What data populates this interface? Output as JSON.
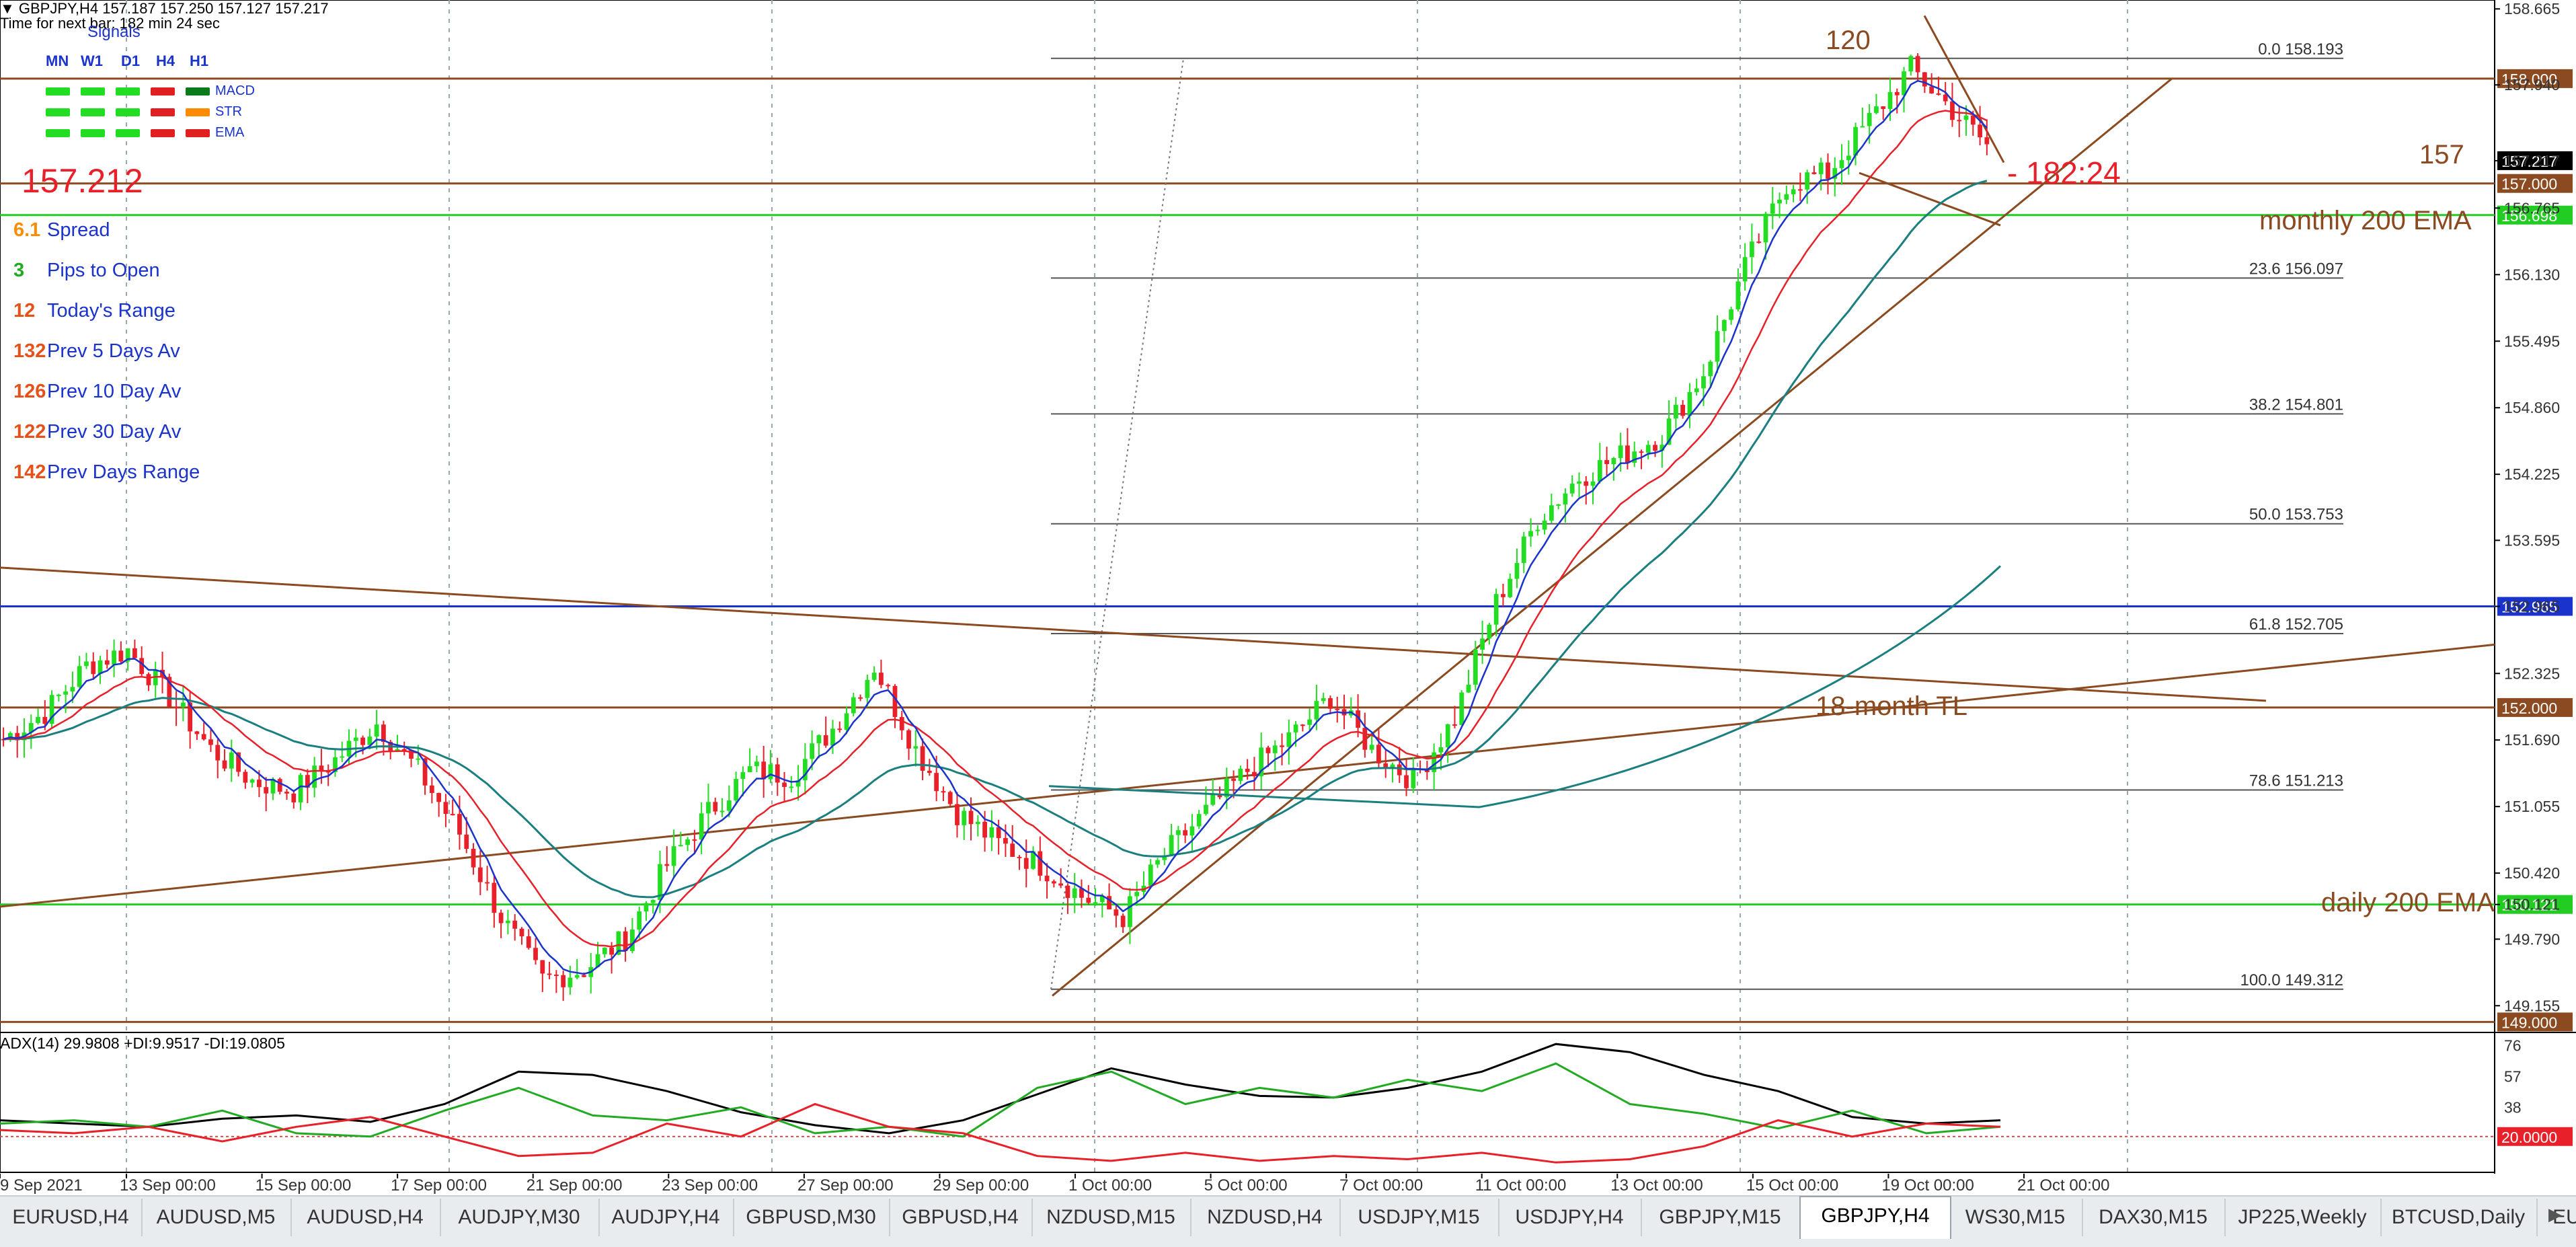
{
  "header": {
    "line1": "▼ GBPJPY,H4  157.187 157.250 157.127 157.217",
    "line2": "Time for next bar: 182 min 24 sec"
  },
  "signals": {
    "title": "Signals",
    "timeframes": [
      "MN",
      "W1",
      "D1",
      "H4",
      "H1"
    ],
    "rows": [
      {
        "label": "MACD",
        "colors": [
          "#22dd22",
          "#22dd22",
          "#22dd22",
          "#e02020",
          "#0a7a1a"
        ]
      },
      {
        "label": "STR",
        "colors": [
          "#22dd22",
          "#22dd22",
          "#22dd22",
          "#e02020",
          "#ff8c00"
        ]
      },
      {
        "label": "EMA",
        "colors": [
          "#22dd22",
          "#22dd22",
          "#22dd22",
          "#e02020",
          "#e02020"
        ]
      }
    ]
  },
  "big_price": "157.212",
  "stats": [
    {
      "value": "6.1",
      "label": "Spread",
      "color": "#ff8c00"
    },
    {
      "value": "3",
      "label": "Pips to Open",
      "color": "#22aa22"
    },
    {
      "value": "12",
      "label": "Today's Range",
      "color": "#e8501a"
    },
    {
      "value": "132",
      "label": "Prev 5 Days Av",
      "color": "#e8501a"
    },
    {
      "value": "126",
      "label": "Prev 10 Day Av",
      "color": "#e8501a"
    },
    {
      "value": "122",
      "label": "Prev 30 Day Av",
      "color": "#e8501a"
    },
    {
      "value": "142",
      "label": "Prev Days Range",
      "color": "#e8501a"
    }
  ],
  "annotations": {
    "label_120": "120",
    "label_157": "157",
    "countdown": "- 182:24",
    "monthly_ema": "monthly 200 EMA",
    "daily_ema": "daily 200 EMA",
    "tl_18month": "18-month TL"
  },
  "adx_label": "ADX(14) 29.9808 +DI:9.9517 -DI:19.0805",
  "chart_data": {
    "type": "candlestick",
    "symbol": "GBPJPY",
    "timeframe": "H4",
    "ylim": [
      148.9,
      158.75
    ],
    "price_ticks": [
      "158.665",
      "157.940",
      "157.217",
      "156.765",
      "156.130",
      "155.495",
      "154.860",
      "154.225",
      "153.595",
      "152.965",
      "152.325",
      "151.690",
      "151.055",
      "150.420",
      "150.121",
      "149.790",
      "149.155"
    ],
    "price_tick_values": [
      158.665,
      157.94,
      157.217,
      156.765,
      156.13,
      155.495,
      154.86,
      154.225,
      153.595,
      152.965,
      152.325,
      151.69,
      151.055,
      150.42,
      150.121,
      149.79,
      149.155
    ],
    "x_labels": [
      "9 Sep 2021",
      "13 Sep 00:00",
      "15 Sep 00:00",
      "17 Sep 00:00",
      "21 Sep 00:00",
      "23 Sep 00:00",
      "27 Sep 00:00",
      "29 Sep 00:00",
      "1 Oct 00:00",
      "5 Oct 00:00",
      "7 Oct 00:00",
      "11 Oct 00:00",
      "13 Oct 00:00",
      "15 Oct 00:00",
      "19 Oct 00:00",
      "21 Oct 00:00"
    ],
    "horizontal_levels": [
      {
        "price": 158.0,
        "label": "158.000",
        "color": "#8b4a1f"
      },
      {
        "price": 157.0,
        "label": "157.000",
        "color": "#8b4a1f"
      },
      {
        "price": 156.698,
        "label": "156.698",
        "color": "#22cc22"
      },
      {
        "price": 152.965,
        "label": "152.965",
        "color": "#1a33cc"
      },
      {
        "price": 152.0,
        "label": "152.000",
        "color": "#8b4a1f"
      },
      {
        "price": 150.121,
        "label": "150.121",
        "color": "#22cc22"
      },
      {
        "price": 149.0,
        "label": "149.000",
        "color": "#8b4a1f"
      }
    ],
    "current_price": {
      "price": 157.217,
      "label": "157.217"
    },
    "fibonacci": [
      {
        "level": "0.0",
        "price": "158.193"
      },
      {
        "level": "23.6",
        "price": "156.097"
      },
      {
        "level": "38.2",
        "price": "154.801"
      },
      {
        "level": "50.0",
        "price": "153.753"
      },
      {
        "level": "61.8",
        "price": "152.705"
      },
      {
        "level": "78.6",
        "price": "151.213"
      },
      {
        "level": "100.0",
        "price": "149.312"
      }
    ],
    "fib_values": [
      158.193,
      156.097,
      154.801,
      153.753,
      152.705,
      151.213,
      149.312
    ],
    "close_path": [
      151.7,
      151.95,
      152.4,
      152.55,
      152.1,
      151.6,
      151.3,
      151.2,
      151.5,
      151.85,
      151.4,
      150.8,
      150.0,
      149.4,
      149.5,
      149.8,
      150.5,
      151.0,
      151.4,
      151.35,
      151.8,
      152.4,
      151.6,
      151.0,
      150.7,
      150.5,
      150.2,
      150.0,
      150.6,
      151.0,
      151.4,
      151.7,
      152.1,
      151.6,
      151.3,
      151.9,
      153.0,
      153.8,
      154.2,
      154.4,
      154.6,
      155.2,
      156.2,
      157.0,
      157.1,
      157.6,
      158.1,
      157.7,
      157.3
    ],
    "adx": {
      "ylim": [
        0,
        80
      ],
      "ticks": [
        "76",
        "57",
        "38",
        "20"
      ],
      "tick_values": [
        76,
        57,
        38,
        20
      ],
      "level": {
        "value": 20,
        "label": "20.0000"
      },
      "adx_path": [
        30,
        28,
        26,
        31,
        33,
        29,
        40,
        60,
        58,
        48,
        35,
        27,
        22,
        30,
        46,
        62,
        52,
        45,
        44,
        50,
        60,
        77,
        72,
        58,
        48,
        32,
        28,
        30
      ],
      "plus_di_path": [
        28,
        30,
        26,
        36,
        22,
        20,
        36,
        50,
        33,
        30,
        38,
        22,
        26,
        20,
        50,
        60,
        40,
        50,
        44,
        55,
        48,
        65,
        40,
        34,
        25,
        36,
        22,
        26
      ],
      "minus_di_path": [
        24,
        22,
        26,
        17,
        26,
        32,
        20,
        8,
        10,
        28,
        20,
        40,
        26,
        22,
        8,
        5,
        10,
        5,
        8,
        6,
        10,
        4,
        6,
        14,
        30,
        20,
        28,
        26
      ]
    }
  },
  "tabs": [
    {
      "label": "EURUSD,H4"
    },
    {
      "label": "AUDUSD,M5"
    },
    {
      "label": "AUDUSD,H4"
    },
    {
      "label": "AUDJPY,M30"
    },
    {
      "label": "AUDJPY,H4"
    },
    {
      "label": "GBPUSD,M30"
    },
    {
      "label": "GBPUSD,H4"
    },
    {
      "label": "NZDUSD,M15"
    },
    {
      "label": "NZDUSD,H4"
    },
    {
      "label": "USDJPY,M15"
    },
    {
      "label": "USDJPY,H4"
    },
    {
      "label": "GBPJPY,M15"
    },
    {
      "label": "GBPJPY,H4",
      "active": true
    },
    {
      "label": "WS30,M15"
    },
    {
      "label": "DAX30,M15"
    },
    {
      "label": "JP225,Weekly"
    },
    {
      "label": "BTCUSD,Daily"
    },
    {
      "label": "EU"
    }
  ],
  "colors": {
    "bull": "#22dd22",
    "bear": "#e8202a",
    "trendline": "#8b4a1f",
    "ema_fast": "#1a33cc",
    "ema_slow": "#1b7f7f"
  }
}
